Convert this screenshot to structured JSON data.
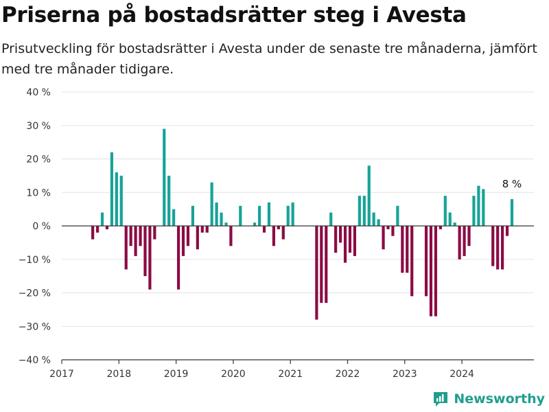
{
  "header": {
    "title": "Priserna på bostadsrätter steg i Avesta",
    "subtitle": "Prisutveckling för bostadsrätter i Avesta under de senaste tre månaderna, jämfört med tre månader tidigare."
  },
  "brand": {
    "name": "Newsworthy",
    "icon": "newsworthy-logo-icon"
  },
  "chart_data": {
    "type": "bar",
    "title": "Priserna på bostadsrätter steg i Avesta",
    "subtitle": "Prisutveckling för bostadsrätter i Avesta under de senaste tre månaderna, jämfört med tre månader tidigare.",
    "xlabel": "",
    "ylabel": "",
    "ylim": [
      -40,
      40
    ],
    "y_ticks": [
      "40 %",
      "30 %",
      "20 %",
      "10 %",
      "0 %",
      "−10 %",
      "−20 %",
      "−30 %",
      "−40 %"
    ],
    "y_tick_values": [
      40,
      30,
      20,
      10,
      0,
      -10,
      -20,
      -30,
      -40
    ],
    "x_ticks": [
      "2017",
      "2018",
      "2019",
      "2020",
      "2021",
      "2022",
      "2023",
      "2024"
    ],
    "grid": true,
    "legend": "none",
    "colors": {
      "positive": "#17a398",
      "negative": "#8c0b45"
    },
    "last_value_label": "8 %",
    "bars": [
      {
        "date": "2017-07",
        "value": -4
      },
      {
        "date": "2017-08",
        "value": -2
      },
      {
        "date": "2017-09",
        "value": 4
      },
      {
        "date": "2017-10",
        "value": -1
      },
      {
        "date": "2017-11",
        "value": 22
      },
      {
        "date": "2017-12",
        "value": 16
      },
      {
        "date": "2018-01",
        "value": 15
      },
      {
        "date": "2018-02",
        "value": -13
      },
      {
        "date": "2018-03",
        "value": -6
      },
      {
        "date": "2018-04",
        "value": -9
      },
      {
        "date": "2018-05",
        "value": -6
      },
      {
        "date": "2018-06",
        "value": -15
      },
      {
        "date": "2018-07",
        "value": -19
      },
      {
        "date": "2018-08",
        "value": -4
      },
      {
        "date": "2018-10",
        "value": 29
      },
      {
        "date": "2018-11",
        "value": 15
      },
      {
        "date": "2018-12",
        "value": 5
      },
      {
        "date": "2019-01",
        "value": -19
      },
      {
        "date": "2019-02",
        "value": -9
      },
      {
        "date": "2019-03",
        "value": -6
      },
      {
        "date": "2019-04",
        "value": 6
      },
      {
        "date": "2019-05",
        "value": -7
      },
      {
        "date": "2019-06",
        "value": -2
      },
      {
        "date": "2019-07",
        "value": -2
      },
      {
        "date": "2019-08",
        "value": 13
      },
      {
        "date": "2019-09",
        "value": 7
      },
      {
        "date": "2019-10",
        "value": 4
      },
      {
        "date": "2019-11",
        "value": 1
      },
      {
        "date": "2019-12",
        "value": -6
      },
      {
        "date": "2020-02",
        "value": 6
      },
      {
        "date": "2020-05",
        "value": 1
      },
      {
        "date": "2020-06",
        "value": 6
      },
      {
        "date": "2020-07",
        "value": -2
      },
      {
        "date": "2020-08",
        "value": 7
      },
      {
        "date": "2020-09",
        "value": -6
      },
      {
        "date": "2020-10",
        "value": -1
      },
      {
        "date": "2020-11",
        "value": -4
      },
      {
        "date": "2020-12",
        "value": 6
      },
      {
        "date": "2021-01",
        "value": 7
      },
      {
        "date": "2021-06",
        "value": -28
      },
      {
        "date": "2021-07",
        "value": -23
      },
      {
        "date": "2021-08",
        "value": -23
      },
      {
        "date": "2021-09",
        "value": 4
      },
      {
        "date": "2021-10",
        "value": -8
      },
      {
        "date": "2021-11",
        "value": -5
      },
      {
        "date": "2021-12",
        "value": -11
      },
      {
        "date": "2022-01",
        "value": -8
      },
      {
        "date": "2022-02",
        "value": -9
      },
      {
        "date": "2022-03",
        "value": 9
      },
      {
        "date": "2022-04",
        "value": 9
      },
      {
        "date": "2022-05",
        "value": 18
      },
      {
        "date": "2022-06",
        "value": 4
      },
      {
        "date": "2022-07",
        "value": 2
      },
      {
        "date": "2022-08",
        "value": -7
      },
      {
        "date": "2022-09",
        "value": -1
      },
      {
        "date": "2022-10",
        "value": -3
      },
      {
        "date": "2022-11",
        "value": 6
      },
      {
        "date": "2022-12",
        "value": -14
      },
      {
        "date": "2023-01",
        "value": -14
      },
      {
        "date": "2023-02",
        "value": -21
      },
      {
        "date": "2023-05",
        "value": -21
      },
      {
        "date": "2023-06",
        "value": -27
      },
      {
        "date": "2023-07",
        "value": -27
      },
      {
        "date": "2023-08",
        "value": -1
      },
      {
        "date": "2023-09",
        "value": 9
      },
      {
        "date": "2023-10",
        "value": 4
      },
      {
        "date": "2023-11",
        "value": 1
      },
      {
        "date": "2023-12",
        "value": -10
      },
      {
        "date": "2024-01",
        "value": -9
      },
      {
        "date": "2024-02",
        "value": -6
      },
      {
        "date": "2024-03",
        "value": 9
      },
      {
        "date": "2024-04",
        "value": 12
      },
      {
        "date": "2024-05",
        "value": 11
      },
      {
        "date": "2024-07",
        "value": -12
      },
      {
        "date": "2024-08",
        "value": -13
      },
      {
        "date": "2024-09",
        "value": -13
      },
      {
        "date": "2024-10",
        "value": -3
      },
      {
        "date": "2024-11",
        "value": 8
      }
    ]
  }
}
